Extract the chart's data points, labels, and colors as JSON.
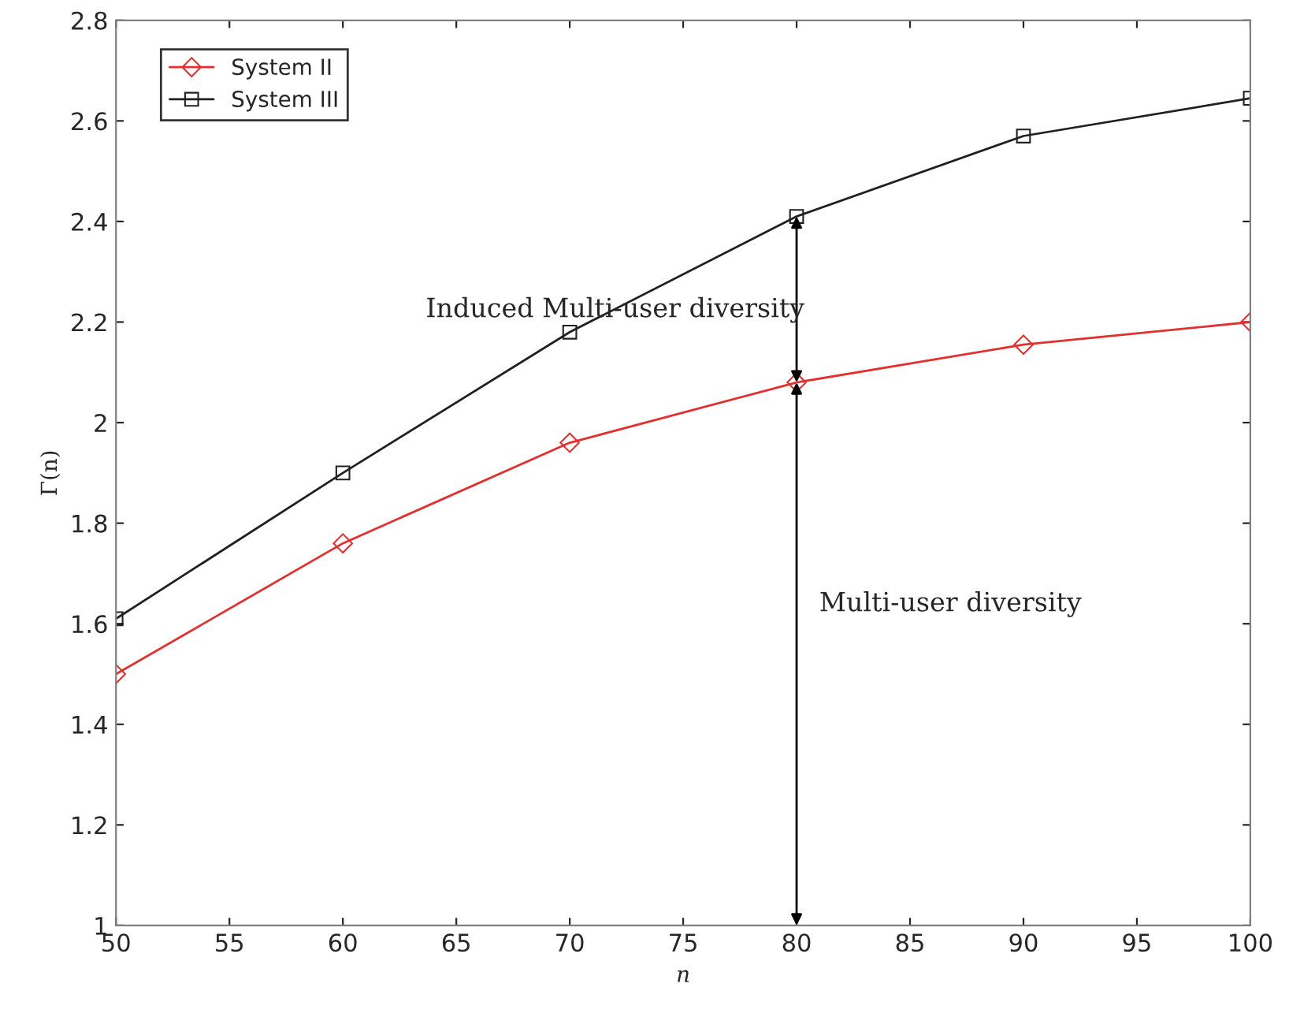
{
  "chart_data": {
    "type": "line",
    "xlabel": "n",
    "ylabel": "Γ(n)",
    "x": [
      50,
      60,
      70,
      80,
      90,
      100
    ],
    "series": [
      {
        "name": "System II",
        "color": "#e03030",
        "marker": "diamond",
        "values": [
          1.5,
          1.76,
          1.96,
          2.08,
          2.155,
          2.2
        ]
      },
      {
        "name": "System III",
        "color": "#202020",
        "marker": "square",
        "values": [
          1.61,
          1.9,
          2.18,
          2.41,
          2.57,
          2.645
        ]
      }
    ],
    "annotations": [
      "Induced Multi-user diversity",
      "Multi-user diversity"
    ],
    "xlim": [
      50,
      100
    ],
    "xticks": [
      50,
      55,
      60,
      65,
      70,
      75,
      80,
      85,
      90,
      95,
      100
    ],
    "ylim": [
      1,
      2.8
    ],
    "yticks": [
      1,
      1.2,
      1.4,
      1.6,
      1.8,
      2,
      2.2,
      2.4,
      2.6,
      2.8
    ],
    "grid": false,
    "legend": "top left",
    "line_style": "solid"
  }
}
